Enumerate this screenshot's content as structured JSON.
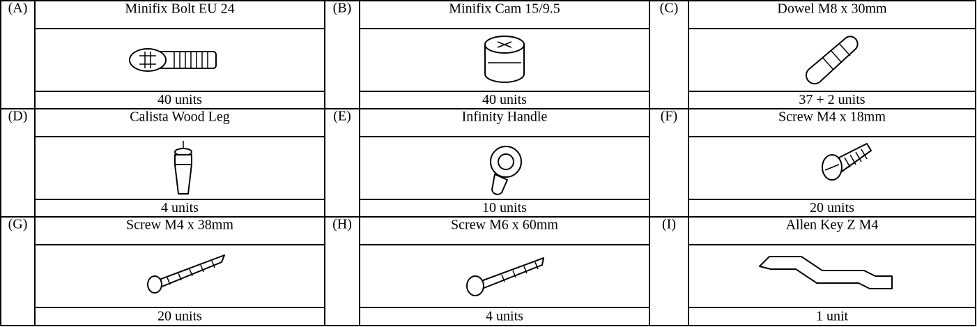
{
  "items": [
    {
      "letter": "(A)",
      "name": "Minifix Bolt EU 24",
      "quantity": "40 units"
    },
    {
      "letter": "(B)",
      "name": "Minifix Cam 15/9.5",
      "quantity": "40 units"
    },
    {
      "letter": "(C)",
      "name": "Dowel M8 x 30mm",
      "quantity": "37 + 2 units"
    },
    {
      "letter": "(D)",
      "name": "Calista Wood Leg",
      "quantity": "4 units"
    },
    {
      "letter": "(E)",
      "name": "Infinity Handle",
      "quantity": "10 units"
    },
    {
      "letter": "(F)",
      "name": "Screw M4 x 18mm",
      "quantity": "20 units"
    },
    {
      "letter": "(G)",
      "name": "Screw M4 x 38mm",
      "quantity": "20 units"
    },
    {
      "letter": "(H)",
      "name": "Screw M6 x 60mm",
      "quantity": "4 units"
    },
    {
      "letter": "(I)",
      "name": "Allen Key Z M4",
      "quantity": "1 unit"
    }
  ]
}
